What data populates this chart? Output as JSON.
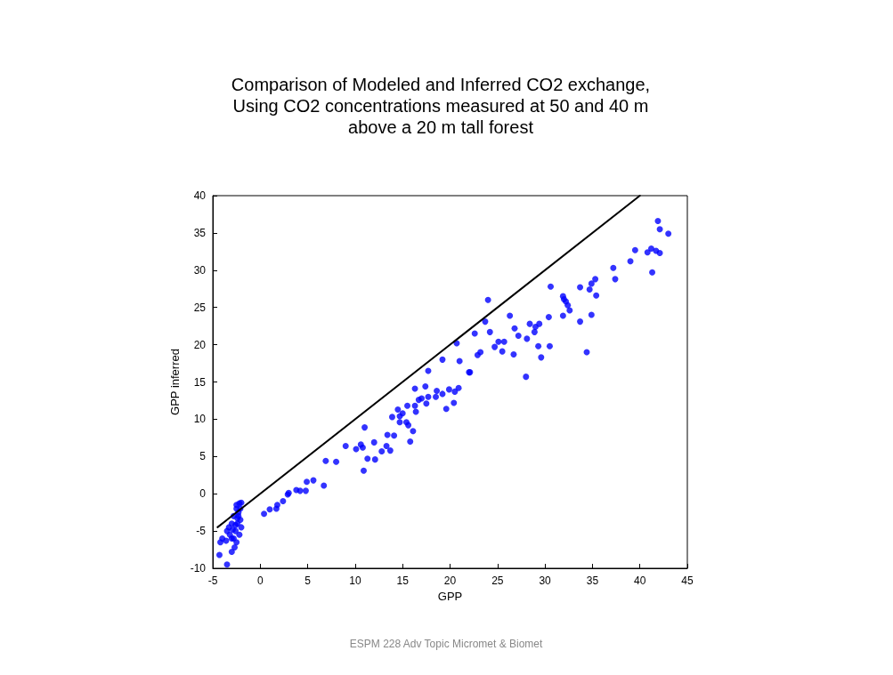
{
  "chart_data": {
    "type": "scatter",
    "title": "Comparison of Modeled and Inferred CO2 exchange,\nUsing CO2 concentrations measured at 50 and 40 m\nabove a 20 m tall forest",
    "xlabel": "GPP",
    "ylabel": "GPP inferred",
    "annotations": [
      "ESPM 228 Adv Topic Micromet & Biomet"
    ],
    "xlim": [
      -5,
      45
    ],
    "xticks": [
      -5,
      0,
      5,
      10,
      15,
      20,
      25,
      30,
      35,
      40,
      45
    ],
    "ylim": [
      -10,
      40
    ],
    "yticks": [
      -10,
      -5,
      0,
      5,
      10,
      15,
      20,
      25,
      30,
      35,
      40
    ],
    "series": [
      {
        "color": "#0000ff",
        "marker": "circle",
        "x": [
          -4.2,
          -4.3,
          -3.5,
          -4,
          -3.5,
          -3.3,
          -3,
          -3,
          -2.8,
          -2.5,
          -2.5,
          -2.2,
          -2,
          -2.3,
          -2.4,
          -2.6,
          -2.8,
          -2.7,
          -3,
          -2.2,
          -2,
          -2.1,
          -2.3,
          -3.2,
          -3.6,
          -2.5,
          -2.1,
          -2.4,
          -2.9,
          -2.6,
          0.4,
          1,
          1.7,
          1.8,
          2.4,
          2.9,
          3,
          3.8,
          4.2,
          4.8,
          4.9,
          5.6,
          6.7,
          6.9,
          8,
          9,
          10.1,
          10.6,
          10.8,
          11,
          12,
          11.3,
          10.9,
          12.1,
          12.8,
          13.4,
          14.1,
          13.3,
          13.7,
          13.9,
          14.5,
          14.7,
          15,
          14.7,
          15.4,
          15.6,
          16.1,
          15.8,
          15.5,
          16.3,
          16.4,
          16.3,
          17.4,
          16.7,
          17,
          17.5,
          17.7,
          17.7,
          18.5,
          18.6,
          19.2,
          19.6,
          19.9,
          20.4,
          20.5,
          20.9,
          19.2,
          21,
          20.7,
          22,
          22.1,
          22.9,
          23.2,
          24.7,
          25.1,
          25.7,
          25.5,
          26.7,
          24,
          23.7,
          22.6,
          24.2,
          26.3,
          26.8,
          27.2,
          28,
          28.1,
          28.4,
          28.9,
          29,
          29.4,
          29.3,
          29.6,
          30.5,
          30.4,
          30.6,
          31.9,
          32,
          32.2,
          32.4,
          32.6,
          31.9,
          33.7,
          33.7,
          34.7,
          34.9,
          35.3,
          35.4,
          34.9,
          34.4,
          37.2,
          37.4,
          41.3,
          39,
          39.5,
          40.8,
          41.2,
          41.7,
          42.1,
          41.9,
          42.1,
          43
        ],
        "values": [
          -6.5,
          -8.2,
          -9.5,
          -6,
          -5,
          -4.5,
          -4,
          -6,
          -3,
          -2,
          -1.5,
          -1.3,
          -1.2,
          -3,
          -4,
          -5,
          -6,
          -7.2,
          -7.8,
          -5.5,
          -4.5,
          -3.5,
          -2.5,
          -5.5,
          -6.3,
          -6.5,
          -2,
          -3.3,
          -4.8,
          -4.2,
          -2.7,
          -2.1,
          -2,
          -1.5,
          -1,
          -0.1,
          0.1,
          0.5,
          0.4,
          0.4,
          1.6,
          1.8,
          1.1,
          4.4,
          4.3,
          6.4,
          6,
          6.6,
          6.2,
          8.9,
          6.9,
          4.7,
          3.1,
          4.6,
          5.7,
          7.9,
          7.8,
          6.4,
          5.8,
          10.3,
          11.3,
          10.4,
          10.8,
          9.6,
          9.6,
          9.2,
          8.4,
          7,
          11.8,
          11.8,
          11,
          14.1,
          14.4,
          12.6,
          12.8,
          12.1,
          13,
          16.5,
          13,
          13.8,
          13.4,
          11.4,
          14,
          12.2,
          13.7,
          14.2,
          18,
          17.8,
          20.2,
          16.3,
          16.3,
          18.6,
          19,
          19.7,
          20.4,
          20.4,
          19.1,
          18.7,
          26,
          23.1,
          21.5,
          21.7,
          23.9,
          22.2,
          21.2,
          15.7,
          20.8,
          22.8,
          21.7,
          22.4,
          22.8,
          19.8,
          18.3,
          19.8,
          23.7,
          27.8,
          26.5,
          26.1,
          25.8,
          25.3,
          24.6,
          23.9,
          27.7,
          23.1,
          27.4,
          28.2,
          28.8,
          26.6,
          24,
          19,
          30.3,
          28.8,
          29.7,
          31.2,
          32.7,
          32.4,
          32.9,
          32.6,
          32.3,
          36.6,
          35.5,
          34.9
        ]
      },
      {
        "type": "line",
        "color": "#000000",
        "marker": "none",
        "line_style": "solid",
        "x": [
          -4.5,
          40
        ],
        "values": [
          -4.5,
          40
        ]
      }
    ]
  }
}
